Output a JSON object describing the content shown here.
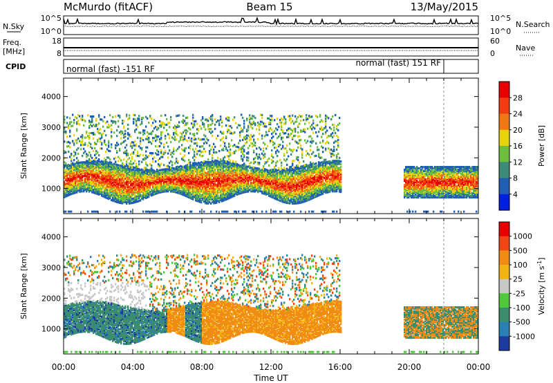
{
  "header": {
    "station": "McMurdo (fitACF)",
    "beam": "Beam 15",
    "date": "13/May/2015"
  },
  "top_panels": {
    "nsky_label": "N.Sky",
    "nsearch_label": "N.Search",
    "freq_label_line1": "Freq.",
    "freq_label_line2": "[MHz]",
    "nave_label": "Nave",
    "cpid_label": "CPID",
    "noise_ticks_left": [
      "10^5",
      "10^0"
    ],
    "noise_ticks_right": [
      "10^5",
      "10^0"
    ],
    "freq_ticks": [
      "18",
      "8"
    ],
    "nave_ticks": [
      "60",
      "0"
    ],
    "cpid_segments": [
      {
        "label": "normal (fast) -151 RF",
        "start_hour": 0,
        "end_hour": 21.8
      },
      {
        "label": "normal (fast) 151 RF",
        "start_hour": 21.8,
        "end_hour": 24
      }
    ]
  },
  "chart_data": [
    {
      "type": "heatmap",
      "name": "power-panel",
      "ylabel": "Slant Range [km]",
      "xlabel": "",
      "xlim_hours": [
        0,
        24
      ],
      "ylim": [
        180,
        4600
      ],
      "y_ticks": [
        "1000",
        "2000",
        "3000",
        "4000"
      ],
      "x_ticks": [
        "00:00",
        "04:00",
        "08:00",
        "12:00",
        "16:00",
        "20:00",
        "00:00"
      ],
      "colorbar": {
        "label": "Power [dB]",
        "tick_labels": [
          "4",
          "8",
          "12",
          "16",
          "20",
          "24",
          "28"
        ],
        "colors": [
          "#0020e0",
          "#1e5fb4",
          "#3c8c78",
          "#6cbe3c",
          "#e8d20c",
          "#f07814",
          "#f03c10",
          "#e60000"
        ]
      }
    },
    {
      "type": "heatmap",
      "name": "velocity-panel",
      "ylabel": "Slant Range [km]",
      "xlabel": "Time UT",
      "xlim_hours": [
        0,
        24
      ],
      "ylim": [
        180,
        4600
      ],
      "y_ticks": [
        "1000",
        "2000",
        "3000",
        "4000"
      ],
      "x_ticks": [
        "00:00",
        "04:00",
        "08:00",
        "12:00",
        "16:00",
        "20:00",
        "00:00"
      ],
      "colorbar": {
        "label": "Velocity [m s",
        "label_sup": "-1",
        "label_end": "]",
        "tick_labels": [
          "1000",
          "500",
          "100",
          "25",
          "-25",
          "-100",
          "-500",
          "-1000"
        ],
        "colors": [
          "#1e3ca0",
          "#2a7fb5",
          "#3c8c6e",
          "#50c83c",
          "#c8c8c8",
          "#f0b414",
          "#f08c14",
          "#f04614",
          "#e60000"
        ]
      }
    }
  ]
}
